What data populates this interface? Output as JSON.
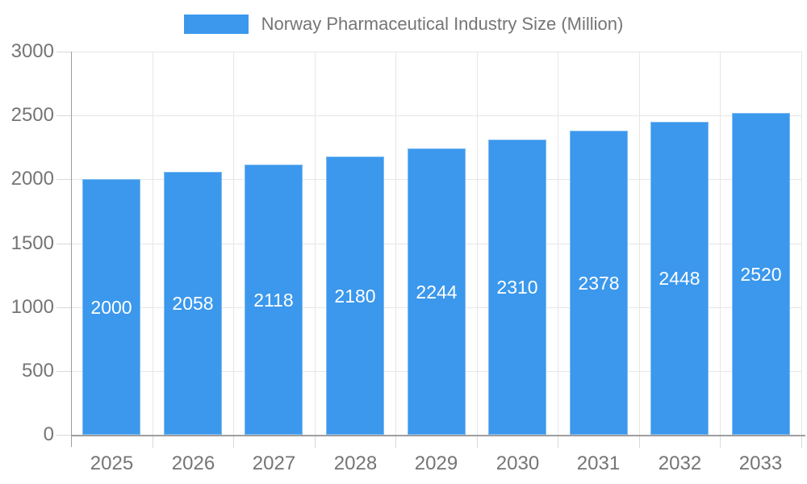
{
  "chart_data": {
    "type": "bar",
    "title": "Norway Pharmaceutical Industry Size (Million)",
    "legend": {
      "position": "top",
      "label": "Norway Pharmaceutical Industry Size (Million)"
    },
    "categories": [
      "2025",
      "2026",
      "2027",
      "2028",
      "2029",
      "2030",
      "2031",
      "2032",
      "2033"
    ],
    "series": [
      {
        "name": "Norway Pharmaceutical Industry Size (Million)",
        "values": [
          2000,
          2058,
          2118,
          2180,
          2244,
          2310,
          2378,
          2448,
          2520
        ]
      }
    ],
    "xlabel": "",
    "ylabel": "",
    "ylim": [
      0,
      3000
    ],
    "yticks": [
      0,
      500,
      1000,
      1500,
      2000,
      2500,
      3000
    ],
    "grid": true,
    "bar_value_labels": [
      "2000",
      "2058",
      "2118",
      "2180",
      "2244",
      "2310",
      "2378",
      "2448",
      "2520"
    ],
    "colors": {
      "bar": "#3B98EC",
      "bar_value_text": "#FFFFFF",
      "axis_line": "#9E9E9E",
      "gridline": "#E6E6E6",
      "tick": "#D9D9D9",
      "axis_text": "#757575",
      "background": "#FFFFFF"
    }
  }
}
